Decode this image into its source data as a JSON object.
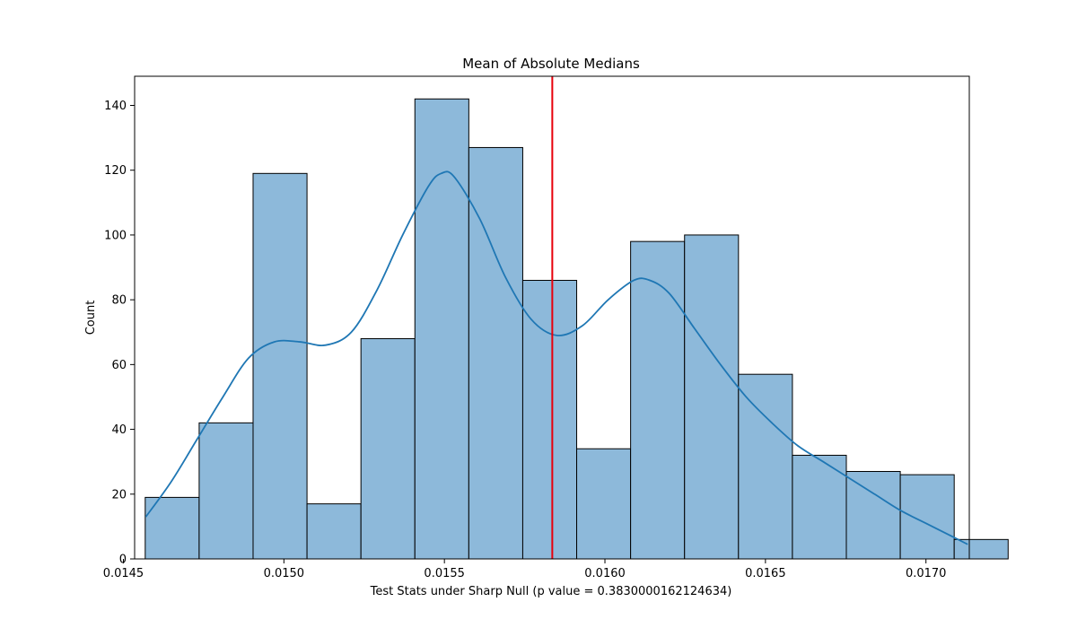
{
  "chart_data": {
    "type": "bar",
    "title": "Mean of Absolute Medians",
    "xlabel": "Test Stats under Sharp Null (p value = 0.3830000162124634)",
    "ylabel": "Count",
    "xlim": [
      0.014535,
      0.017135
    ],
    "ylim": [
      0,
      149
    ],
    "x_ticks": [
      "0.0145",
      "0.0150",
      "0.0155",
      "0.0160",
      "0.0165",
      "0.0170"
    ],
    "x_tick_values": [
      0.0145,
      0.015,
      0.0155,
      0.016,
      0.0165,
      0.017
    ],
    "y_ticks": [
      "0",
      "20",
      "40",
      "60",
      "80",
      "100",
      "120",
      "140"
    ],
    "y_tick_values": [
      0,
      20,
      40,
      60,
      80,
      100,
      120,
      140
    ],
    "bins": [
      {
        "start": 0.014568,
        "end": 0.014736,
        "count": 19
      },
      {
        "start": 0.014736,
        "end": 0.014904,
        "count": 42
      },
      {
        "start": 0.014904,
        "end": 0.015072,
        "count": 119
      },
      {
        "start": 0.015072,
        "end": 0.01524,
        "count": 17
      },
      {
        "start": 0.01524,
        "end": 0.015408,
        "count": 68
      },
      {
        "start": 0.015408,
        "end": 0.015576,
        "count": 142
      },
      {
        "start": 0.015576,
        "end": 0.015744,
        "count": 127
      },
      {
        "start": 0.015744,
        "end": 0.015912,
        "count": 86
      },
      {
        "start": 0.015912,
        "end": 0.01608,
        "count": 34
      },
      {
        "start": 0.01608,
        "end": 0.016248,
        "count": 98
      },
      {
        "start": 0.016248,
        "end": 0.016416,
        "count": 100
      },
      {
        "start": 0.016416,
        "end": 0.016584,
        "count": 57
      },
      {
        "start": 0.016584,
        "end": 0.016752,
        "count": 32
      },
      {
        "start": 0.016752,
        "end": 0.01692,
        "count": 27
      },
      {
        "start": 0.01692,
        "end": 0.017088,
        "count": 26
      },
      {
        "start": 0.017088,
        "end": 0.017256,
        "count": 6
      }
    ],
    "kde": {
      "x": [
        0.01457,
        0.01465,
        0.01473,
        0.01481,
        0.01489,
        0.01497,
        0.01505,
        0.01513,
        0.01521,
        0.01529,
        0.01537,
        0.01545,
        0.01549,
        0.01553,
        0.01561,
        0.01569,
        0.01577,
        0.01585,
        0.01593,
        0.01601,
        0.01609,
        0.01614,
        0.0162,
        0.01628,
        0.01636,
        0.01644,
        0.01652,
        0.0166,
        0.01668,
        0.01676,
        0.01684,
        0.01692,
        0.017,
        0.01708,
        0.01713
      ],
      "y": [
        13,
        24,
        37,
        50,
        62,
        67,
        67,
        66,
        70,
        83,
        100,
        115,
        119,
        118,
        105,
        87,
        74,
        69,
        72,
        80,
        86,
        86,
        82,
        71,
        60,
        50,
        42,
        35,
        30,
        25,
        20,
        15,
        11,
        7,
        4.5
      ]
    },
    "vline": {
      "x": 0.015836,
      "color": "#e8000b"
    },
    "bar_color": "#8db9da",
    "kde_color": "#1f77b4",
    "grid": false,
    "legend": "none"
  }
}
